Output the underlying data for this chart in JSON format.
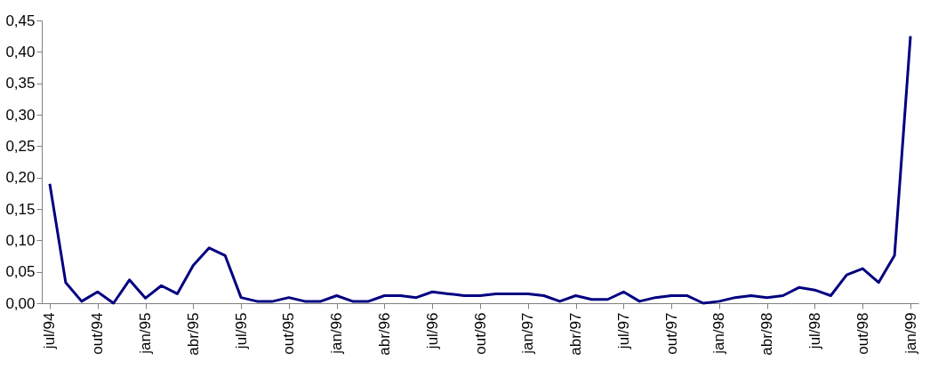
{
  "chart_data": {
    "type": "line",
    "categories": [
      "jul/94",
      null,
      null,
      "out/94",
      null,
      null,
      "jan/95",
      null,
      null,
      "abr/95",
      null,
      null,
      "jul/95",
      null,
      null,
      "out/95",
      null,
      null,
      "jan/96",
      null,
      null,
      "abr/96",
      null,
      null,
      "jul/96",
      null,
      null,
      "out/96",
      null,
      null,
      "jan/97",
      null,
      null,
      "abr/97",
      null,
      null,
      "jul/97",
      null,
      null,
      "out/97",
      null,
      null,
      "jan/98",
      null,
      null,
      "abr/98",
      null,
      null,
      "jul/98",
      null,
      null,
      "out/98",
      null,
      null,
      "jan/99"
    ],
    "series": [
      {
        "color": "#000080",
        "values": [
          0.19,
          0.033,
          0.003,
          0.018,
          0.0,
          0.037,
          0.008,
          0.028,
          0.015,
          0.06,
          0.088,
          0.076,
          0.009,
          0.003,
          0.003,
          0.009,
          0.003,
          0.003,
          0.012,
          0.003,
          0.003,
          0.012,
          0.012,
          0.009,
          0.018,
          0.015,
          0.012,
          0.012,
          0.015,
          0.015,
          0.015,
          0.012,
          0.003,
          0.012,
          0.006,
          0.006,
          0.018,
          0.003,
          0.009,
          0.012,
          0.012,
          0.0,
          0.003,
          0.009,
          0.012,
          0.009,
          0.012,
          0.025,
          0.021,
          0.012,
          0.045,
          0.055,
          0.033,
          0.076,
          0.425
        ]
      }
    ],
    "ylim": [
      0,
      0.45
    ],
    "yticks": [
      {
        "value": 0,
        "label": "0,00"
      },
      {
        "value": 0.05,
        "label": "0,05"
      },
      {
        "value": 0.1,
        "label": "0,10"
      },
      {
        "value": 0.15,
        "label": "0,15"
      },
      {
        "value": 0.2,
        "label": "0,20"
      },
      {
        "value": 0.25,
        "label": "0,25"
      },
      {
        "value": 0.3,
        "label": "0,30"
      },
      {
        "value": 0.35,
        "label": "0,35"
      },
      {
        "value": 0.4,
        "label": "0,40"
      },
      {
        "value": 0.45,
        "label": "0,45"
      }
    ],
    "grid": false,
    "marker": "none",
    "line_style": "solid"
  }
}
